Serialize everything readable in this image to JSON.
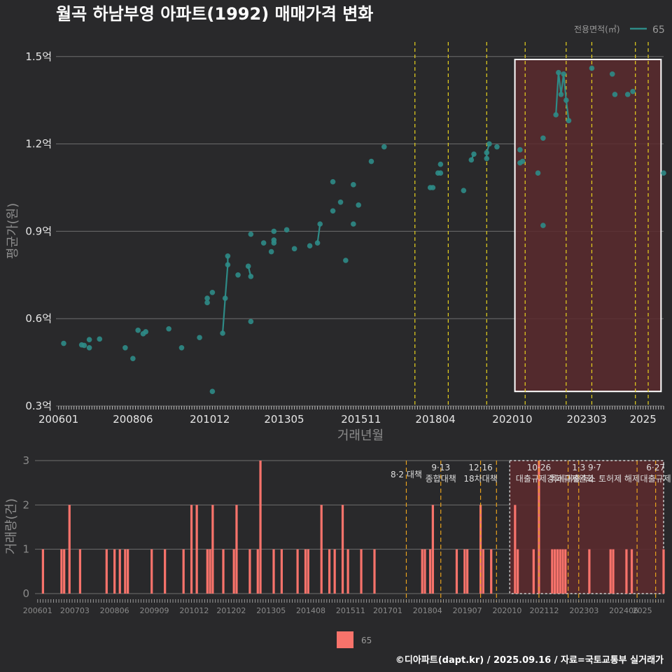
{
  "title": "월곡 하남부영 아파트(1992) 매매가격 변화",
  "caption": "©디아파트(dapt.kr) / 2025.09.16 / 자료=국토교통부 실거래가",
  "colors": {
    "background": "#29292b",
    "series": "#2e8b87",
    "bar": "#f8736b",
    "policy_line": "#e8d21d",
    "policy_line_bottom": "#e8a21d",
    "highlight_fill": "#5a2a2e",
    "grid": "#6e6e6e"
  },
  "chart_data": [
    {
      "type": "line",
      "title": "월곡 하남부영 아파트(1992) 매매가격 변화",
      "xlabel": "거래년월",
      "ylabel": "평균가(원)",
      "ylim": [
        0.3,
        1.55
      ],
      "y_unit": "억",
      "y_ticks": [
        "0.3억",
        "0.6억",
        "0.9억",
        "1.2억",
        "1.5억"
      ],
      "y_tick_values": [
        0.3,
        0.6,
        0.9,
        1.2,
        1.5
      ],
      "xlim": [
        "2006-01",
        "2025-09"
      ],
      "x_ticks": [
        "200601",
        "200806",
        "201012",
        "201305",
        "201511",
        "201804",
        "202010",
        "202303",
        "2025"
      ],
      "legend": {
        "title": "전용면적(㎡)",
        "entries": [
          "65"
        ],
        "position": "top-right"
      },
      "highlight_box": {
        "x": [
          "2020-11",
          "2025-08"
        ],
        "y": [
          0.35,
          1.49
        ]
      },
      "policy_lines": [
        "2017-08",
        "2018-09",
        "2019-12",
        "2021-03",
        "2022-07",
        "2023-05",
        "2024-10",
        "2025-03"
      ],
      "series": [
        {
          "name": "65",
          "points": [
            [
              "2006-03",
              0.515
            ],
            [
              "2006-10",
              0.51
            ],
            [
              "2006-11",
              0.508
            ],
            [
              "2007-01",
              0.528
            ],
            [
              "2007-01",
              0.5
            ],
            [
              "2007-05",
              0.53
            ],
            [
              "2008-03",
              0.5
            ],
            [
              "2008-06",
              0.463
            ],
            [
              "2008-08",
              0.56
            ],
            [
              "2008-10",
              0.548
            ],
            [
              "2008-11",
              0.555
            ],
            [
              "2009-08",
              0.565
            ],
            [
              "2010-01",
              0.5
            ],
            [
              "2010-08",
              0.535
            ],
            [
              "2010-11",
              0.67
            ],
            [
              "2010-11",
              0.655
            ],
            [
              "2011-01",
              0.69
            ],
            [
              "2011-01",
              0.35
            ],
            [
              "2011-05",
              0.55
            ],
            [
              "2011-06",
              0.67
            ],
            [
              "2011-07",
              0.785
            ],
            [
              "2011-07",
              0.815
            ],
            [
              "2011-11",
              0.75
            ],
            [
              "2012-03",
              0.78
            ],
            [
              "2012-04",
              0.745
            ],
            [
              "2012-04",
              0.59
            ],
            [
              "2012-04",
              0.89
            ],
            [
              "2012-09",
              0.86
            ],
            [
              "2012-12",
              0.83
            ],
            [
              "2013-01",
              0.87
            ],
            [
              "2013-01",
              0.86
            ],
            [
              "2013-01",
              0.9
            ],
            [
              "2013-06",
              0.905
            ],
            [
              "2013-09",
              0.84
            ],
            [
              "2014-03",
              0.85
            ],
            [
              "2014-06",
              0.86
            ],
            [
              "2014-07",
              0.925
            ],
            [
              "2014-12",
              0.97
            ],
            [
              "2014-12",
              1.07
            ],
            [
              "2015-03",
              1.0
            ],
            [
              "2015-05",
              0.8
            ],
            [
              "2015-08",
              0.925
            ],
            [
              "2015-08",
              1.06
            ],
            [
              "2015-10",
              0.99
            ],
            [
              "2016-03",
              1.14
            ],
            [
              "2016-08",
              1.19
            ],
            [
              "2018-02",
              1.05
            ],
            [
              "2018-03",
              1.05
            ],
            [
              "2018-05",
              1.1
            ],
            [
              "2018-06",
              1.1
            ],
            [
              "2018-06",
              1.13
            ],
            [
              "2019-03",
              1.04
            ],
            [
              "2019-06",
              1.145
            ],
            [
              "2019-07",
              1.165
            ],
            [
              "2019-12",
              1.15
            ],
            [
              "2019-12",
              1.17
            ],
            [
              "2020-01",
              1.2
            ],
            [
              "2020-04",
              1.19
            ],
            [
              "2021-01",
              1.135
            ],
            [
              "2021-01",
              1.18
            ],
            [
              "2021-02",
              1.14
            ],
            [
              "2021-08",
              1.1
            ],
            [
              "2021-10",
              0.92
            ],
            [
              "2021-10",
              1.22
            ],
            [
              "2022-03",
              1.3
            ],
            [
              "2022-04",
              1.445
            ],
            [
              "2022-05",
              1.37
            ],
            [
              "2022-06",
              1.44
            ],
            [
              "2022-07",
              1.35
            ],
            [
              "2022-08",
              1.28
            ],
            [
              "2023-05",
              1.46
            ],
            [
              "2024-01",
              1.44
            ],
            [
              "2024-02",
              1.37
            ],
            [
              "2024-07",
              1.37
            ],
            [
              "2024-09",
              1.38
            ],
            [
              "2025-09",
              1.1
            ]
          ],
          "connected_runs": [
            [
              [
                "2011-05",
                0.55
              ],
              [
                "2011-06",
                0.67
              ],
              [
                "2011-07",
                0.785
              ],
              [
                "2011-07",
                0.815
              ]
            ],
            [
              [
                "2012-03",
                0.78
              ],
              [
                "2012-04",
                0.745
              ]
            ],
            [
              [
                "2013-01",
                0.87
              ],
              [
                "2013-01",
                0.86
              ]
            ],
            [
              [
                "2014-06",
                0.86
              ],
              [
                "2014-07",
                0.925
              ]
            ],
            [
              [
                "2019-06",
                1.145
              ],
              [
                "2019-07",
                1.165
              ]
            ],
            [
              [
                "2019-12",
                1.15
              ],
              [
                "2019-12",
                1.17
              ],
              [
                "2020-01",
                1.2
              ]
            ],
            [
              [
                "2021-01",
                1.135
              ],
              [
                "2021-02",
                1.14
              ]
            ],
            [
              [
                "2022-03",
                1.3
              ],
              [
                "2022-04",
                1.445
              ],
              [
                "2022-05",
                1.37
              ],
              [
                "2022-06",
                1.44
              ],
              [
                "2022-07",
                1.35
              ],
              [
                "2022-08",
                1.28
              ]
            ]
          ]
        }
      ]
    },
    {
      "type": "bar",
      "xlabel": "",
      "ylabel": "거래량(건)",
      "ylim": [
        0,
        3
      ],
      "y_ticks": [
        "0",
        "1",
        "2",
        "3"
      ],
      "xlim": [
        "2006-01",
        "2025-09"
      ],
      "x_ticks": [
        "200601",
        "200703",
        "200806",
        "200909",
        "201012",
        "201202",
        "201305",
        "201408",
        "201511",
        "201701",
        "201804",
        "201907",
        "202010",
        "202112",
        "202303",
        "202406",
        "2025"
      ],
      "legend": {
        "entries": [
          "65"
        ],
        "position": "bottom"
      },
      "highlight_box": {
        "x": [
          "2020-11",
          "2025-09"
        ],
        "y": [
          0,
          3
        ]
      },
      "policy_lines": [
        "2017-08",
        "2018-09",
        "2019-12",
        "2020-06",
        "2021-10",
        "2022-09",
        "2023-01",
        "2024-11",
        "2025-06"
      ],
      "annotations": [
        {
          "date": "2017-08",
          "lines": [
            "8·2 대책"
          ]
        },
        {
          "date": "2018-09",
          "lines": [
            "9·13",
            "종합대책"
          ]
        },
        {
          "date": "2019-12",
          "lines": [
            "12·16",
            "18차대책"
          ]
        },
        {
          "date": "2021-10",
          "lines": [
            "10·26",
            "대출규제강화"
          ]
        },
        {
          "date": "2023-01",
          "lines": [
            "1·3",
            "규제완화"
          ]
        },
        {
          "date": "2023-07",
          "lines": [
            "9·7",
            "특례대출축소 토허제 해제"
          ]
        },
        {
          "date": "2025-06",
          "lines": [
            "6·27",
            "대출규제"
          ]
        }
      ],
      "series": [
        {
          "name": "65",
          "bars": [
            [
              "2006-03",
              1
            ],
            [
              "2006-10",
              1
            ],
            [
              "2006-11",
              1
            ],
            [
              "2007-01",
              2
            ],
            [
              "2007-05",
              1
            ],
            [
              "2008-03",
              1
            ],
            [
              "2008-06",
              1
            ],
            [
              "2008-08",
              1
            ],
            [
              "2008-10",
              1
            ],
            [
              "2008-11",
              1
            ],
            [
              "2009-08",
              1
            ],
            [
              "2010-01",
              1
            ],
            [
              "2010-08",
              1
            ],
            [
              "2010-11",
              2
            ],
            [
              "2011-01",
              2
            ],
            [
              "2011-05",
              1
            ],
            [
              "2011-06",
              1
            ],
            [
              "2011-07",
              2
            ],
            [
              "2011-11",
              1
            ],
            [
              "2012-03",
              1
            ],
            [
              "2012-04",
              2
            ],
            [
              "2012-09",
              1
            ],
            [
              "2012-12",
              1
            ],
            [
              "2013-01",
              3
            ],
            [
              "2013-06",
              1
            ],
            [
              "2013-09",
              1
            ],
            [
              "2014-03",
              1
            ],
            [
              "2014-06",
              1
            ],
            [
              "2014-07",
              1
            ],
            [
              "2014-12",
              2
            ],
            [
              "2015-03",
              1
            ],
            [
              "2015-05",
              1
            ],
            [
              "2015-08",
              2
            ],
            [
              "2015-10",
              1
            ],
            [
              "2016-03",
              1
            ],
            [
              "2016-08",
              1
            ],
            [
              "2018-02",
              1
            ],
            [
              "2018-03",
              1
            ],
            [
              "2018-05",
              1
            ],
            [
              "2018-06",
              2
            ],
            [
              "2019-03",
              1
            ],
            [
              "2019-06",
              1
            ],
            [
              "2019-07",
              1
            ],
            [
              "2019-12",
              2
            ],
            [
              "2020-01",
              1
            ],
            [
              "2020-04",
              1
            ],
            [
              "2021-01",
              2
            ],
            [
              "2021-02",
              1
            ],
            [
              "2021-08",
              1
            ],
            [
              "2021-10",
              3
            ],
            [
              "2022-03",
              1
            ],
            [
              "2022-04",
              1
            ],
            [
              "2022-05",
              1
            ],
            [
              "2022-06",
              1
            ],
            [
              "2022-07",
              1
            ],
            [
              "2022-08",
              1
            ],
            [
              "2023-05",
              1
            ],
            [
              "2024-01",
              1
            ],
            [
              "2024-02",
              1
            ],
            [
              "2024-07",
              1
            ],
            [
              "2024-09",
              1
            ],
            [
              "2025-09",
              1
            ]
          ]
        }
      ]
    }
  ]
}
